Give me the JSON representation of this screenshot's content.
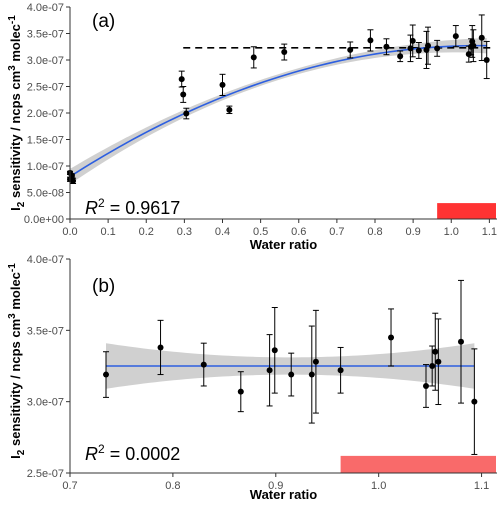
{
  "chart_data": [
    {
      "type": "scatter",
      "panel_label": "(a)",
      "xlabel": "Water ratio",
      "ylabel": "I2 sensitivity / ncps cm3 molec-1",
      "xlim": [
        0.0,
        1.12
      ],
      "ylim": [
        0,
        4e-07
      ],
      "x_ticks": [
        0.0,
        0.1,
        0.2,
        0.3,
        0.4,
        0.5,
        0.6,
        0.7,
        0.8,
        0.9,
        1.0,
        1.1
      ],
      "x_tick_labels": [
        "0.0",
        "0.1",
        "0.2",
        "0.3",
        "0.4",
        "0.5",
        "0.6",
        "0.7",
        "0.8",
        "0.9",
        "1.0",
        "1.1"
      ],
      "y_ticks": [
        0,
        5e-08,
        1e-07,
        1.5e-07,
        2e-07,
        2.5e-07,
        3e-07,
        3.5e-07,
        4e-07
      ],
      "y_tick_labels": [
        "0.0e+00",
        "5.0e-08",
        "1.0e-07",
        "1.5e-07",
        "2.0e-07",
        "2.5e-07",
        "3.0e-07",
        "3.5e-07",
        "4.0e-07"
      ],
      "r2_text": " = 0.9617",
      "points": [
        {
          "x": 0.0,
          "y": 8.7e-08,
          "err": 3e-09
        },
        {
          "x": 0.005,
          "y": 8.2e-08,
          "err": 3e-09
        },
        {
          "x": 0.008,
          "y": 7.2e-08,
          "err": 5e-09
        },
        {
          "x": 0.0,
          "y": 7.5e-08,
          "err": 4e-09
        },
        {
          "x": 0.293,
          "y": 2.64e-07,
          "err": 1.5e-08
        },
        {
          "x": 0.297,
          "y": 2.35e-07,
          "err": 1.5e-08
        },
        {
          "x": 0.305,
          "y": 1.99e-07,
          "err": 1e-08
        },
        {
          "x": 0.4,
          "y": 2.53e-07,
          "err": 2e-08
        },
        {
          "x": 0.418,
          "y": 2.06e-07,
          "err": 7e-09
        },
        {
          "x": 0.482,
          "y": 3.05e-07,
          "err": 2e-08
        },
        {
          "x": 0.562,
          "y": 3.15e-07,
          "err": 1.5e-08
        },
        {
          "x": 0.735,
          "y": 3.19e-07,
          "err": 1.5e-08
        },
        {
          "x": 0.788,
          "y": 3.37e-07,
          "err": 2e-08
        },
        {
          "x": 0.83,
          "y": 3.25e-07,
          "err": 1.5e-08
        },
        {
          "x": 0.866,
          "y": 3.07e-07,
          "err": 1e-08
        },
        {
          "x": 0.893,
          "y": 3.22e-07,
          "err": 2.5e-08
        },
        {
          "x": 0.899,
          "y": 3.36e-07,
          "err": 3e-08
        },
        {
          "x": 0.915,
          "y": 3.18e-07,
          "err": 1.5e-08
        },
        {
          "x": 0.935,
          "y": 3.19e-07,
          "err": 3.5e-08
        },
        {
          "x": 0.939,
          "y": 3.27e-07,
          "err": 3.5e-08
        },
        {
          "x": 0.963,
          "y": 3.22e-07,
          "err": 1.5e-08
        },
        {
          "x": 1.012,
          "y": 3.45e-07,
          "err": 2e-08
        },
        {
          "x": 1.046,
          "y": 3.11e-07,
          "err": 1.5e-08
        },
        {
          "x": 1.052,
          "y": 3.25e-07,
          "err": 1.5e-08
        },
        {
          "x": 1.055,
          "y": 3.35e-07,
          "err": 3e-08
        },
        {
          "x": 1.058,
          "y": 3.27e-07,
          "err": 3e-08
        },
        {
          "x": 1.08,
          "y": 3.42e-07,
          "err": 4.3e-08
        },
        {
          "x": 1.093,
          "y": 3e-07,
          "err": 3.5e-08
        }
      ],
      "fit": {
        "type": "quadratic",
        "a": 8e-08,
        "b": 4.61e-07,
        "c": -2.15e-07
      },
      "reference_line_y": 3.23e-07,
      "highlight_range": {
        "x0": 0.963,
        "x1": 1.12,
        "y0": 0,
        "y1": 3e-08,
        "color": "#ff3333"
      }
    },
    {
      "type": "scatter",
      "panel_label": "(b)",
      "xlabel": "Water ratio",
      "ylabel": "I2 sensitivity / ncps cm3 molec-1",
      "xlim": [
        0.7,
        1.115
      ],
      "ylim": [
        2.5e-07,
        4e-07
      ],
      "x_ticks": [
        0.7,
        0.8,
        0.9,
        1.0,
        1.1
      ],
      "x_tick_labels": [
        "0.7",
        "0.8",
        "0.9",
        "1.0",
        "1.1"
      ],
      "y_ticks": [
        2.5e-07,
        3e-07,
        3.5e-07,
        4e-07
      ],
      "y_tick_labels": [
        "2.5e-07",
        "3.0e-07",
        "3.5e-07",
        "4.0e-07"
      ],
      "r2_text": " = 0.0002",
      "points": [
        {
          "x": 0.735,
          "y": 3.19e-07,
          "err": 1.6e-08
        },
        {
          "x": 0.788,
          "y": 3.38e-07,
          "err": 1.9e-08
        },
        {
          "x": 0.83,
          "y": 3.26e-07,
          "err": 1.5e-08
        },
        {
          "x": 0.866,
          "y": 3.07e-07,
          "err": 1.4e-08
        },
        {
          "x": 0.894,
          "y": 3.22e-07,
          "err": 2.5e-08
        },
        {
          "x": 0.899,
          "y": 3.36e-07,
          "err": 3e-08
        },
        {
          "x": 0.915,
          "y": 3.19e-07,
          "err": 1.5e-08
        },
        {
          "x": 0.935,
          "y": 3.19e-07,
          "err": 3.4e-08
        },
        {
          "x": 0.939,
          "y": 3.28e-07,
          "err": 3.6e-08
        },
        {
          "x": 0.963,
          "y": 3.22e-07,
          "err": 1.6e-08
        },
        {
          "x": 1.012,
          "y": 3.45e-07,
          "err": 2e-08
        },
        {
          "x": 1.046,
          "y": 3.11e-07,
          "err": 1.5e-08
        },
        {
          "x": 1.052,
          "y": 3.25e-07,
          "err": 1.4e-08
        },
        {
          "x": 1.055,
          "y": 3.35e-07,
          "err": 2.7e-08
        },
        {
          "x": 1.058,
          "y": 3.28e-07,
          "err": 3e-08
        },
        {
          "x": 1.08,
          "y": 3.42e-07,
          "err": 4.3e-08
        },
        {
          "x": 1.093,
          "y": 3e-07,
          "err": 3.7e-08
        }
      ],
      "fit": {
        "type": "linear",
        "y": 3.25e-07
      },
      "highlight_range": {
        "x0": 0.963,
        "x1": 1.115,
        "y0": 2.5e-07,
        "y1": 2.62e-07,
        "color": "#f96a6a"
      }
    }
  ]
}
